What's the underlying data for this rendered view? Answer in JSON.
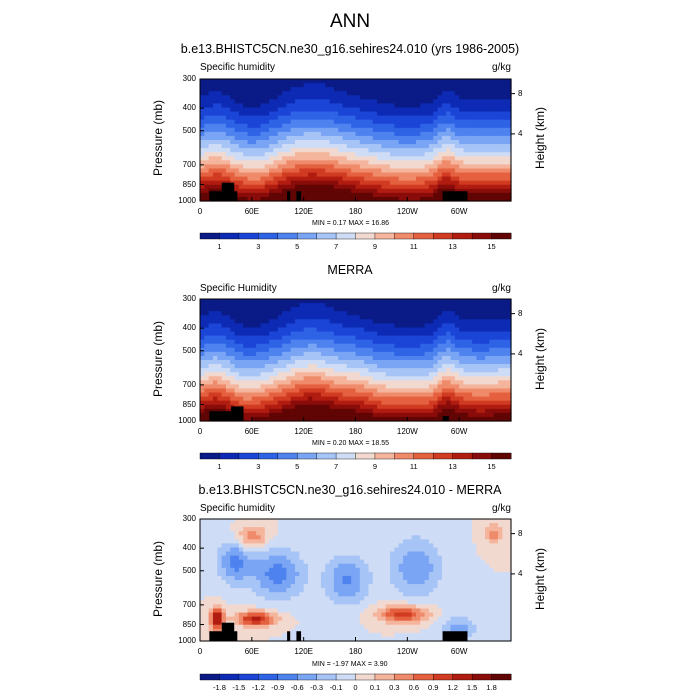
{
  "main_title": "ANN",
  "panels": [
    {
      "title": "b.e13.BHISTC5CN.ne30_g16.sehires24.010 (yrs 1986-2005)",
      "left_label": "Specific humidity",
      "right_label": "g/kg",
      "ylabel": "Pressure (mb)",
      "y2label": "Height (km)",
      "minmax": "MIN =   0.17  MAX =   16.86"
    },
    {
      "title": "MERRA",
      "left_label": "Specific Humidity",
      "right_label": "g/kg",
      "ylabel": "Pressure (mb)",
      "y2label": "Height (km)",
      "minmax": "MIN =   0.20  MAX =   18.55"
    },
    {
      "title": "b.e13.BHISTC5CN.ne30_g16.sehires24.010 - MERRA",
      "left_label": "Specific humidity",
      "right_label": "g/kg",
      "ylabel": "Pressure (mb)",
      "y2label": "Height (km)",
      "minmax": "MIN =  -1.97  MAX =   3.90"
    }
  ],
  "axes": {
    "pressure_ticks": [
      "300",
      "400",
      "500",
      "700",
      "850",
      "1000"
    ],
    "height_ticks": [
      "8",
      "4"
    ],
    "x_ticks": [
      "0",
      "60E",
      "120E",
      "180",
      "120W",
      "60W"
    ]
  },
  "colorbars": {
    "abs_labels": [
      "1",
      "3",
      "5",
      "7",
      "9",
      "11",
      "13",
      "15"
    ],
    "diff_labels": [
      "-1.8",
      "-1.5",
      "-1.2",
      "-0.9",
      "-0.6",
      "-0.3",
      "-0.1",
      "0",
      "0.1",
      "0.3",
      "0.6",
      "0.9",
      "1.2",
      "1.5",
      "1.8"
    ]
  },
  "colors": {
    "blue_red_scale": [
      "#0a1a87",
      "#0d2ab5",
      "#1a45d6",
      "#2f63e6",
      "#4e83ef",
      "#7aa5f4",
      "#a7c4f7",
      "#cfdcf5",
      "#f2d9cf",
      "#f5b49c",
      "#ef8a6a",
      "#e4603f",
      "#d03b22",
      "#b01d10",
      "#8a0c0a",
      "#600404"
    ]
  },
  "chart_data": [
    {
      "type": "heatmap",
      "title": "b.e13.BHISTC5CN.ne30_g16.sehires24.010 (yrs 1986-2005)",
      "variable": "Specific humidity",
      "units": "g/kg",
      "xlabel": "",
      "ylabel": "Pressure (mb)",
      "y2label": "Height (km)",
      "x_ticks": [
        "0",
        "60E",
        "120E",
        "180",
        "120W",
        "60W"
      ],
      "y_ticks": [
        300,
        400,
        500,
        700,
        850,
        1000
      ],
      "y2_ticks": [
        8,
        4
      ],
      "ylim": [
        1000,
        300
      ],
      "min": 0.17,
      "max": 16.86,
      "colorbar_labels": [
        1,
        3,
        5,
        7,
        9,
        11,
        13,
        15
      ]
    },
    {
      "type": "heatmap",
      "title": "MERRA",
      "variable": "Specific Humidity",
      "units": "g/kg",
      "xlabel": "",
      "ylabel": "Pressure (mb)",
      "y2label": "Height (km)",
      "x_ticks": [
        "0",
        "60E",
        "120E",
        "180",
        "120W",
        "60W"
      ],
      "y_ticks": [
        300,
        400,
        500,
        700,
        850,
        1000
      ],
      "y2_ticks": [
        8,
        4
      ],
      "ylim": [
        1000,
        300
      ],
      "min": 0.2,
      "max": 18.55,
      "colorbar_labels": [
        1,
        3,
        5,
        7,
        9,
        11,
        13,
        15
      ]
    },
    {
      "type": "heatmap",
      "title": "b.e13.BHISTC5CN.ne30_g16.sehires24.010 - MERRA",
      "variable": "Specific humidity",
      "units": "g/kg",
      "xlabel": "",
      "ylabel": "Pressure (mb)",
      "y2label": "Height (km)",
      "x_ticks": [
        "0",
        "60E",
        "120E",
        "180",
        "120W",
        "60W"
      ],
      "y_ticks": [
        300,
        400,
        500,
        700,
        850,
        1000
      ],
      "y2_ticks": [
        8,
        4
      ],
      "ylim": [
        1000,
        300
      ],
      "min": -1.97,
      "max": 3.9,
      "colorbar_labels": [
        -1.8,
        -1.5,
        -1.2,
        -0.9,
        -0.6,
        -0.3,
        -0.1,
        0,
        0.1,
        0.3,
        0.6,
        0.9,
        1.2,
        1.5,
        1.8
      ]
    }
  ]
}
